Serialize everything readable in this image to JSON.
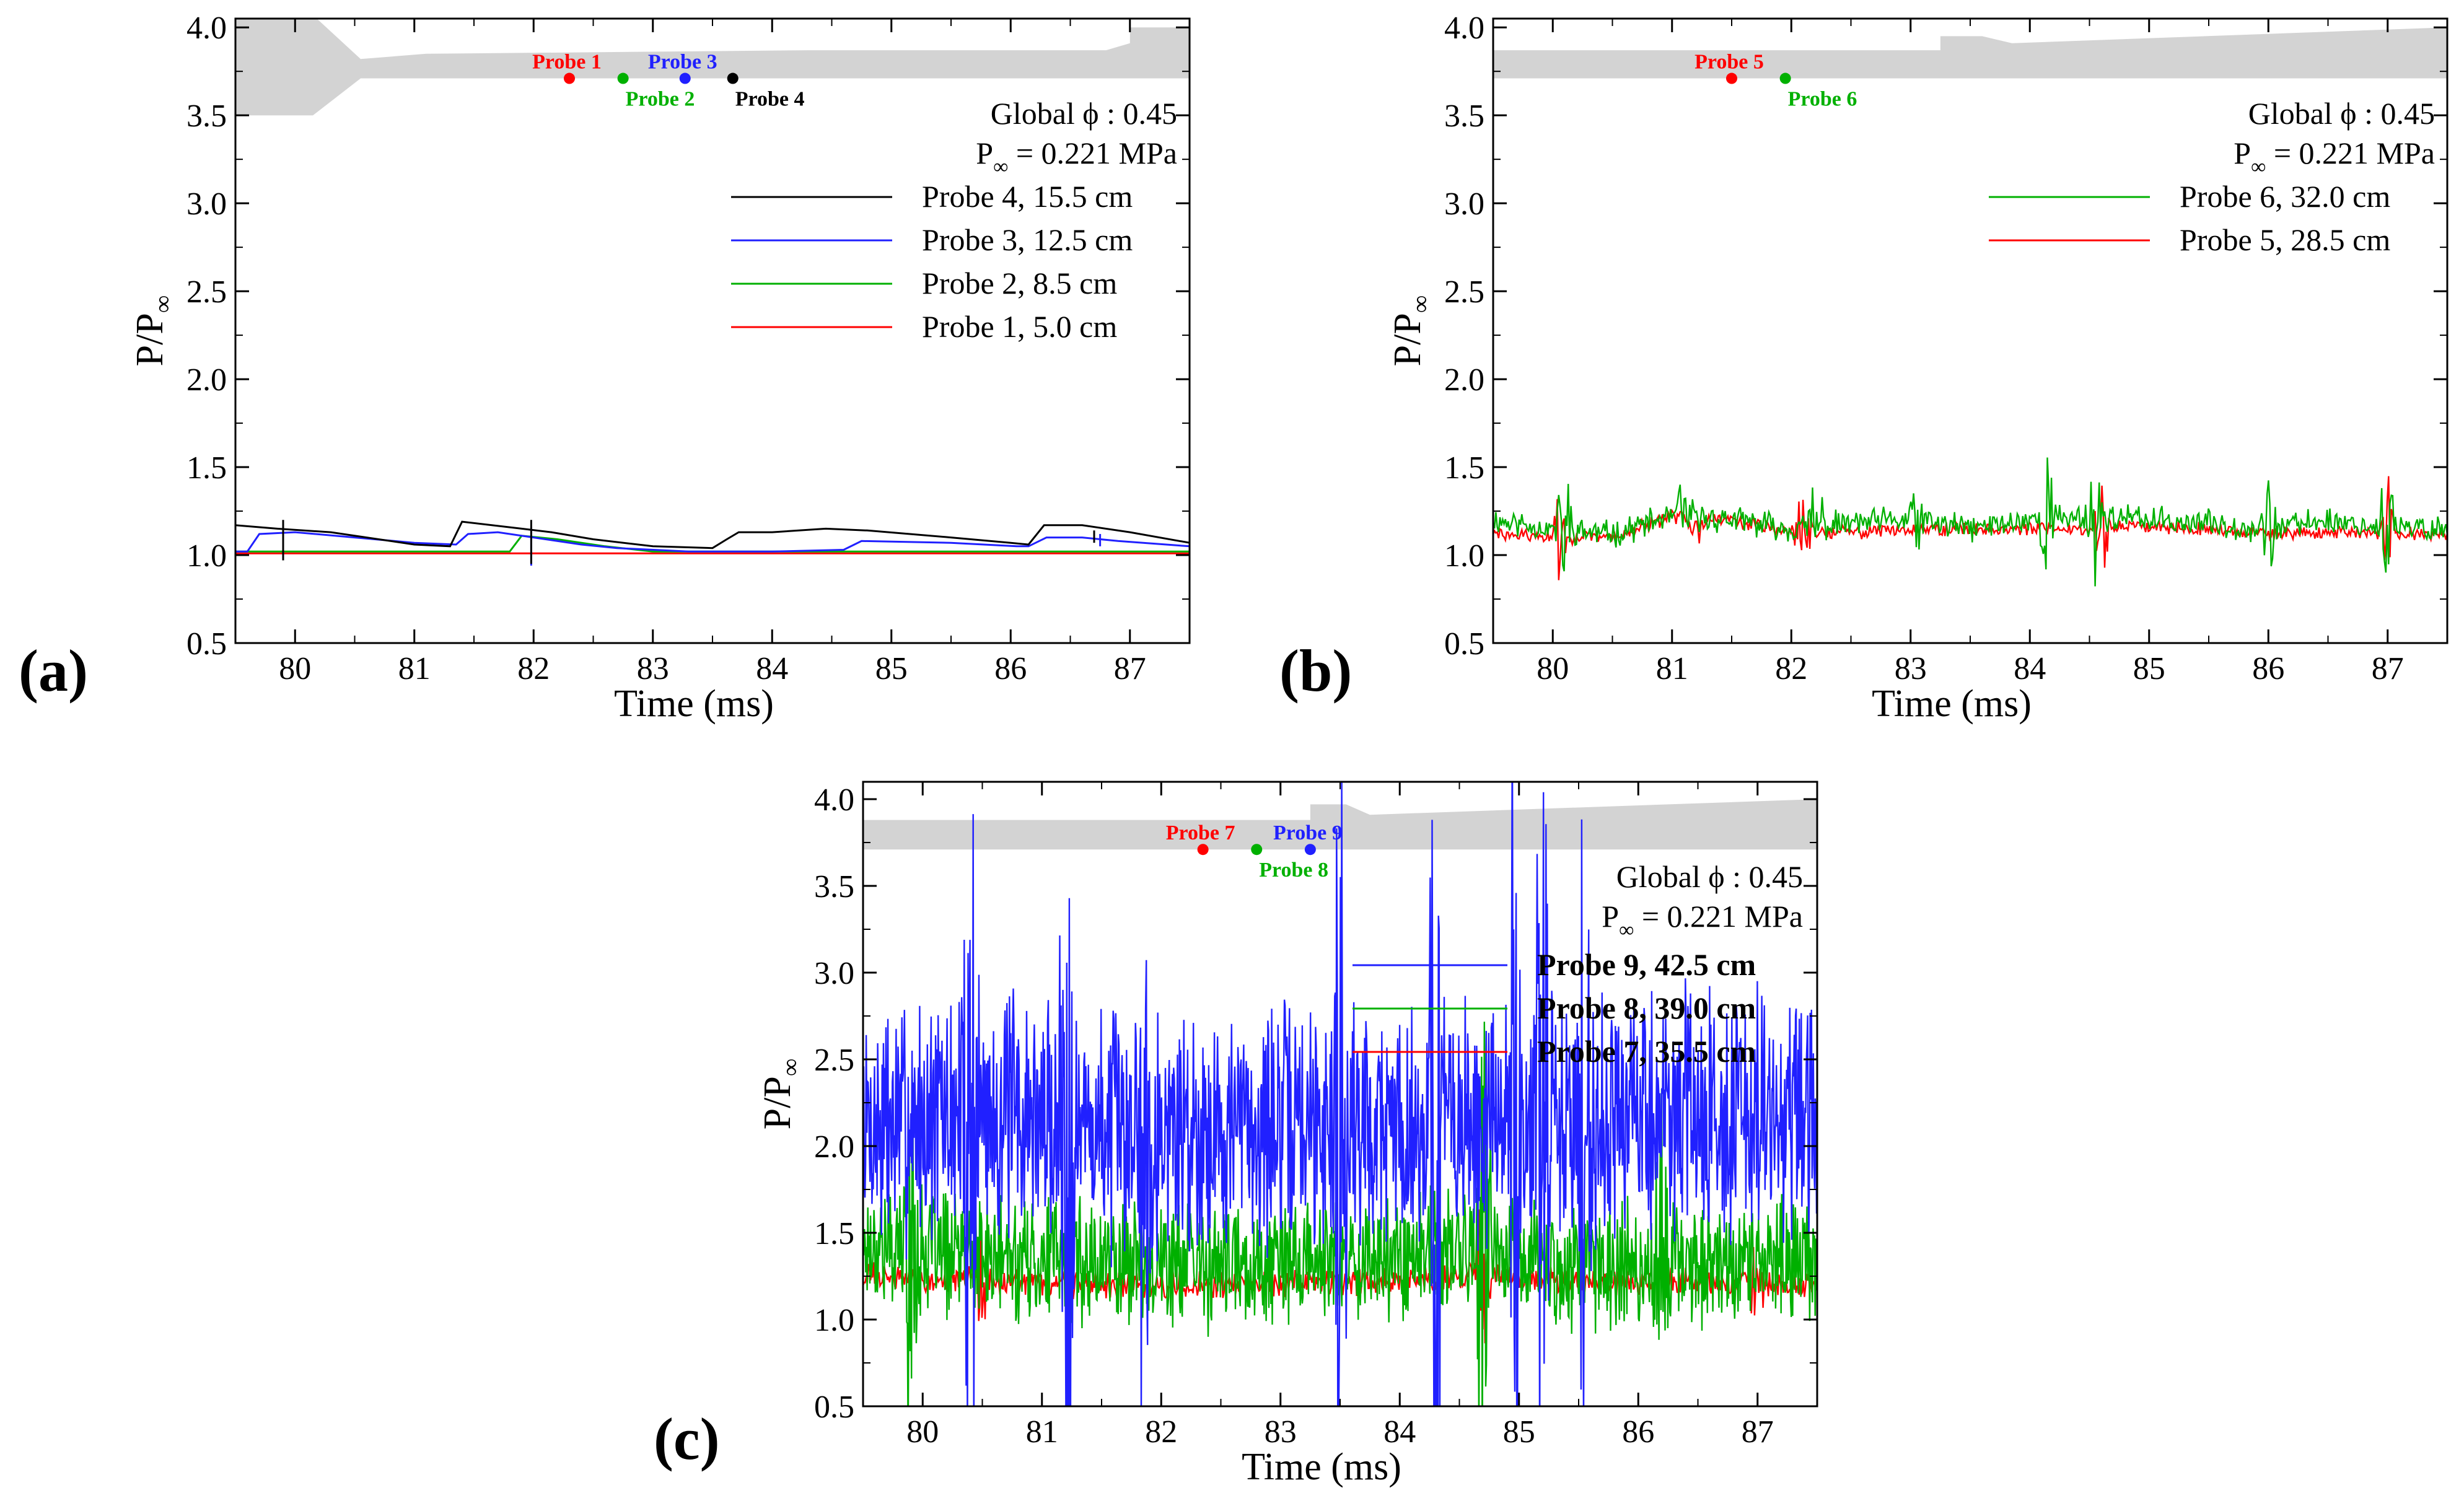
{
  "chart_data": [
    {
      "id": "a",
      "type": "line",
      "panel_label": "(a)",
      "xlabel": "Time (ms)",
      "ylabel_main": "P/P",
      "ylabel_sub": "∞",
      "xlim": [
        79.5,
        87.5
      ],
      "ylim": [
        0.5,
        4.05
      ],
      "xticks": [
        "80",
        "81",
        "82",
        "83",
        "84",
        "85",
        "86",
        "87"
      ],
      "yticks": [
        "0.5",
        "1.0",
        "1.5",
        "2.0",
        "2.5",
        "3.0",
        "3.5",
        "4.0"
      ],
      "annotation_line1": "Global ϕ : 0.45",
      "annotation_line2_main": "P",
      "annotation_line2_sub": "∞",
      "annotation_line2_rest": " = 0.221 MPa",
      "legend_bold": false,
      "inset_profile": [
        [
          79.5,
          4.07
        ],
        [
          80.15,
          4.07
        ],
        [
          80.55,
          3.82
        ],
        [
          81.1,
          3.85
        ],
        [
          84.3,
          3.87
        ],
        [
          86.8,
          3.87
        ],
        [
          87.0,
          3.91
        ],
        [
          87.0,
          4.0
        ],
        [
          87.5,
          4.0
        ],
        [
          87.5,
          3.71
        ],
        [
          80.55,
          3.71
        ],
        [
          80.15,
          3.5
        ],
        [
          79.5,
          3.5
        ]
      ],
      "probe_markers": [
        {
          "label": "Probe 1",
          "x": 82.3,
          "y": 3.71,
          "color": "#ff0000",
          "label_pos": "above"
        },
        {
          "label": "Probe 2",
          "x": 82.75,
          "y": 3.71,
          "color": "#00b000",
          "label_pos": "below"
        },
        {
          "label": "Probe 3",
          "x": 83.27,
          "y": 3.71,
          "color": "#2020ff",
          "label_pos": "above"
        },
        {
          "label": "Probe 4",
          "x": 83.67,
          "y": 3.71,
          "color": "#000000",
          "label_pos": "below"
        }
      ],
      "legend": [
        {
          "text": "Probe   4, 15.5 cm",
          "color": "#000000"
        },
        {
          "text": "Probe   3, 12.5 cm",
          "color": "#2020ff"
        },
        {
          "text": "Probe   2,   8.5 cm",
          "color": "#00b000"
        },
        {
          "text": "Probe   1,   5.0 cm",
          "color": "#ff0000"
        }
      ],
      "series": [
        {
          "name": "Probe 4, 15.5 cm",
          "color": "#000000",
          "style": "smooth",
          "x": [
            79.5,
            79.85,
            80.3,
            81.0,
            81.3,
            81.4,
            81.9,
            82.15,
            82.5,
            83.0,
            83.5,
            83.62,
            83.72,
            84.0,
            84.45,
            84.8,
            85.5,
            86.0,
            86.15,
            86.28,
            86.6,
            87.0,
            87.5
          ],
          "y": [
            1.17,
            1.15,
            1.13,
            1.06,
            1.05,
            1.19,
            1.15,
            1.13,
            1.09,
            1.05,
            1.04,
            1.09,
            1.13,
            1.13,
            1.15,
            1.14,
            1.1,
            1.07,
            1.06,
            1.17,
            1.17,
            1.13,
            1.07
          ],
          "spikes": [
            [
              79.9,
              0.97,
              1.2
            ],
            [
              81.98,
              0.95,
              1.2
            ],
            [
              86.7,
              1.07,
              1.14
            ]
          ]
        },
        {
          "name": "Probe 3, 12.5 cm",
          "color": "#2020ff",
          "style": "smooth",
          "x": [
            79.5,
            79.6,
            79.7,
            80.0,
            80.5,
            81.0,
            81.35,
            81.45,
            81.7,
            82.0,
            82.4,
            82.7,
            83.3,
            84.0,
            84.6,
            84.75,
            85.5,
            86.05,
            86.15,
            86.3,
            86.6,
            86.9,
            87.5
          ],
          "y": [
            1.02,
            1.02,
            1.12,
            1.13,
            1.1,
            1.07,
            1.06,
            1.12,
            1.13,
            1.1,
            1.06,
            1.04,
            1.02,
            1.02,
            1.03,
            1.08,
            1.07,
            1.05,
            1.05,
            1.1,
            1.1,
            1.08,
            1.05
          ],
          "spikes": [
            [
              81.98,
              0.94,
              1.16
            ],
            [
              86.75,
              1.05,
              1.12
            ]
          ]
        },
        {
          "name": "Probe 2, 8.5 cm",
          "color": "#00b000",
          "style": "smooth",
          "x": [
            79.5,
            81.0,
            81.8,
            81.9,
            82.2,
            82.6,
            83.0,
            84.0,
            85.0,
            86.0,
            87.0,
            87.5
          ],
          "y": [
            1.02,
            1.02,
            1.02,
            1.11,
            1.09,
            1.05,
            1.02,
            1.02,
            1.02,
            1.02,
            1.02,
            1.02
          ],
          "spikes": []
        },
        {
          "name": "Probe 1, 5.0 cm",
          "color": "#ff0000",
          "style": "smooth",
          "x": [
            79.5,
            81.0,
            82.5,
            84.0,
            85.5,
            87.0,
            87.5
          ],
          "y": [
            1.01,
            1.01,
            1.01,
            1.01,
            1.01,
            1.01,
            1.01
          ],
          "spikes": []
        }
      ]
    },
    {
      "id": "b",
      "type": "line",
      "panel_label": "(b)",
      "xlabel": "Time (ms)",
      "ylabel_main": "P/P",
      "ylabel_sub": "∞",
      "xlim": [
        79.5,
        87.5
      ],
      "ylim": [
        0.5,
        4.05
      ],
      "xticks": [
        "80",
        "81",
        "82",
        "83",
        "84",
        "85",
        "86",
        "87"
      ],
      "yticks": [
        "0.5",
        "1.0",
        "1.5",
        "2.0",
        "2.5",
        "3.0",
        "3.5",
        "4.0"
      ],
      "annotation_line1": "Global ϕ : 0.45",
      "annotation_line2_main": "P",
      "annotation_line2_sub": "∞",
      "annotation_line2_rest": " = 0.221 MPa",
      "legend_bold": false,
      "inset_profile": [
        [
          79.5,
          3.87
        ],
        [
          83.25,
          3.87
        ],
        [
          83.25,
          3.95
        ],
        [
          83.6,
          3.95
        ],
        [
          83.85,
          3.91
        ],
        [
          87.5,
          4.0
        ],
        [
          87.5,
          3.71
        ],
        [
          79.5,
          3.71
        ]
      ],
      "probe_markers": [
        {
          "label": "Probe 5",
          "x": 81.5,
          "y": 3.71,
          "color": "#ff0000",
          "label_pos": "above"
        },
        {
          "label": "Probe 6",
          "x": 81.95,
          "y": 3.71,
          "color": "#00b000",
          "label_pos": "below"
        }
      ],
      "legend": [
        {
          "text": "Probe   6, 32.0 cm",
          "color": "#00b000"
        },
        {
          "text": "Probe   5, 28.5 cm",
          "color": "#ff0000"
        }
      ],
      "series": [
        {
          "name": "Probe 6, 32.0 cm",
          "color": "#00b000",
          "style": "noise",
          "base_x": [
            79.5,
            80.0,
            80.5,
            81.0,
            81.5,
            82.0,
            82.5,
            83.0,
            83.5,
            84.0,
            84.5,
            85.0,
            85.5,
            86.0,
            86.5,
            87.0,
            87.5
          ],
          "base_y": [
            1.2,
            1.15,
            1.12,
            1.22,
            1.2,
            1.15,
            1.18,
            1.2,
            1.15,
            1.2,
            1.22,
            1.2,
            1.18,
            1.15,
            1.2,
            1.15,
            1.15
          ],
          "amp": 0.06,
          "n": 700,
          "seed": 11,
          "bursts": [
            [
              80.1,
              0.35
            ],
            [
              81.1,
              0.2
            ],
            [
              82.2,
              0.35
            ],
            [
              83.05,
              0.2
            ],
            [
              84.15,
              0.3
            ],
            [
              84.55,
              0.3
            ],
            [
              86.0,
              0.2
            ],
            [
              87.0,
              0.35
            ]
          ]
        },
        {
          "name": "Probe 5, 28.5 cm",
          "color": "#ff0000",
          "style": "noise",
          "base_x": [
            79.5,
            80.0,
            80.5,
            81.0,
            81.5,
            82.0,
            82.5,
            83.0,
            83.5,
            84.0,
            84.5,
            85.0,
            85.5,
            86.0,
            86.5,
            87.0,
            87.5
          ],
          "base_y": [
            1.12,
            1.1,
            1.1,
            1.22,
            1.2,
            1.13,
            1.13,
            1.15,
            1.15,
            1.15,
            1.15,
            1.17,
            1.15,
            1.12,
            1.13,
            1.12,
            1.12
          ],
          "amp": 0.03,
          "n": 700,
          "seed": 29,
          "bursts": [
            [
              80.05,
              0.3
            ],
            [
              81.2,
              0.15
            ],
            [
              82.1,
              0.25
            ],
            [
              84.6,
              0.3
            ],
            [
              87.0,
              0.25
            ]
          ]
        }
      ]
    },
    {
      "id": "c",
      "type": "line",
      "panel_label": "(c)",
      "xlabel": "Time (ms)",
      "ylabel_main": "P/P",
      "ylabel_sub": "∞",
      "xlim": [
        79.5,
        87.5
      ],
      "ylim": [
        0.5,
        4.1
      ],
      "xticks": [
        "80",
        "81",
        "82",
        "83",
        "84",
        "85",
        "86",
        "87"
      ],
      "yticks": [
        "0.5",
        "1.0",
        "1.5",
        "2.0",
        "2.5",
        "3.0",
        "3.5",
        "4.0"
      ],
      "annotation_line1": "Global ϕ : 0.45",
      "annotation_line2_main": "P",
      "annotation_line2_sub": "∞",
      "annotation_line2_rest": " = 0.221 MPa",
      "legend_bold": true,
      "inset_profile": [
        [
          79.5,
          3.88
        ],
        [
          83.25,
          3.88
        ],
        [
          83.25,
          3.97
        ],
        [
          83.55,
          3.97
        ],
        [
          83.75,
          3.91
        ],
        [
          87.5,
          4.0
        ],
        [
          87.5,
          3.71
        ],
        [
          79.5,
          3.71
        ]
      ],
      "probe_markers": [
        {
          "label": "Probe 7",
          "x": 82.35,
          "y": 3.71,
          "color": "#ff0000",
          "label_pos": "above"
        },
        {
          "label": "Probe 8",
          "x": 82.8,
          "y": 3.71,
          "color": "#00b000",
          "label_pos": "below"
        },
        {
          "label": "Probe 9",
          "x": 83.25,
          "y": 3.71,
          "color": "#2020ff",
          "label_pos": "above"
        }
      ],
      "legend": [
        {
          "text": "Probe   9, 42.5 cm",
          "color": "#2020ff"
        },
        {
          "text": "Probe   8, 39.0 cm",
          "color": "#00b000"
        },
        {
          "text": "Probe   7, 35.5 cm",
          "color": "#ff0000"
        }
      ],
      "series": [
        {
          "name": "Probe 9, 42.5 cm",
          "color": "#2020ff",
          "style": "noise",
          "base_x": [
            79.5,
            80.5,
            81.5,
            82.5,
            83.5,
            84.5,
            85.5,
            86.5,
            87.5
          ],
          "base_y": [
            2.1,
            2.2,
            2.1,
            2.1,
            2.15,
            2.1,
            2.15,
            2.2,
            2.1
          ],
          "amp": 0.55,
          "n": 1500,
          "seed": 7,
          "bursts": [
            [
              80.4,
              1.6
            ],
            [
              81.2,
              1.7
            ],
            [
              81.85,
              1.2
            ],
            [
              83.5,
              1.5
            ],
            [
              84.3,
              1.9
            ],
            [
              84.95,
              1.6
            ],
            [
              85.2,
              1.9
            ],
            [
              85.55,
              1.5
            ]
          ]
        },
        {
          "name": "Probe 8, 39.0 cm",
          "color": "#00b000",
          "style": "noise",
          "base_x": [
            79.5,
            80.5,
            81.5,
            82.5,
            83.5,
            84.5,
            85.5,
            86.5,
            87.5
          ],
          "base_y": [
            1.45,
            1.35,
            1.35,
            1.3,
            1.35,
            1.4,
            1.3,
            1.35,
            1.35
          ],
          "amp": 0.28,
          "n": 1400,
          "seed": 17,
          "bursts": [
            [
              79.9,
              0.7
            ],
            [
              84.7,
              0.9
            ],
            [
              86.2,
              0.5
            ]
          ]
        },
        {
          "name": "Probe 7, 35.5 cm",
          "color": "#ff0000",
          "style": "noise",
          "base_x": [
            79.5,
            80.5,
            81.5,
            82.5,
            83.5,
            84.5,
            85.5,
            86.5,
            87.5
          ],
          "base_y": [
            1.25,
            1.22,
            1.2,
            1.2,
            1.22,
            1.25,
            1.22,
            1.22,
            1.2
          ],
          "amp": 0.06,
          "n": 900,
          "seed": 31,
          "bursts": [
            [
              80.5,
              0.25
            ],
            [
              84.7,
              0.6
            ],
            [
              87.0,
              0.25
            ]
          ]
        }
      ]
    }
  ]
}
